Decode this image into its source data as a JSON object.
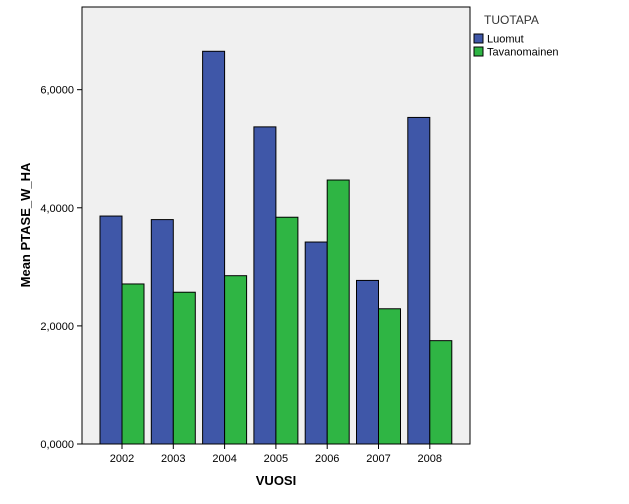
{
  "chart_data": {
    "type": "bar",
    "title": "",
    "xlabel": "VUOSI",
    "ylabel": "Mean PTASE_W_HA",
    "categories": [
      "2002",
      "2003",
      "2004",
      "2005",
      "2006",
      "2007",
      "2008"
    ],
    "series": [
      {
        "name": "Luomut",
        "color": "#3f57a8",
        "values": [
          3.86,
          3.8,
          6.65,
          5.37,
          3.42,
          2.77,
          5.53
        ]
      },
      {
        "name": "Tavanomainen",
        "color": "#2fb544",
        "values": [
          2.71,
          2.57,
          2.85,
          3.84,
          4.47,
          2.29,
          1.75
        ]
      }
    ],
    "ylim": [
      0,
      7.4
    ],
    "yticks": [
      0,
      2,
      4,
      6
    ],
    "ytick_labels": [
      "0,0000",
      "2,0000",
      "4,0000",
      "6,0000"
    ],
    "legend": {
      "title": "TUOTAPA",
      "position": "right"
    },
    "grid": false,
    "plot_background": "#f0f0f0"
  }
}
